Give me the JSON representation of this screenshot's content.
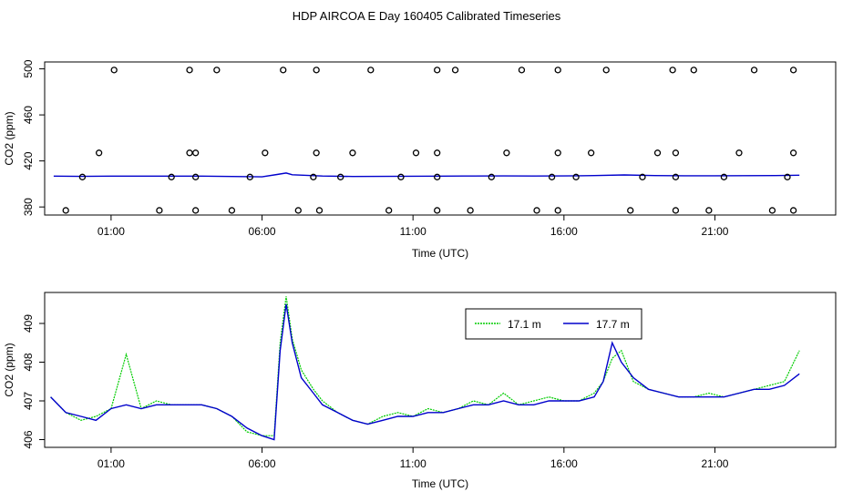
{
  "title": "HDP AIRCOA E  Day 160405  Calibrated Timeseries",
  "colors": {
    "series_17_1": "#00cc00",
    "series_17_7": "#0000cc",
    "axis": "#000000",
    "markers": "#000000"
  },
  "chart_data": [
    {
      "type": "line+scatter",
      "xlabel": "Time (UTC)",
      "ylabel": "CO2 (ppm)",
      "xlim_hours": [
        -1.2,
        25.0
      ],
      "ylim": [
        373,
        506
      ],
      "x_ticks": [
        {
          "value": 1,
          "label": "01:00"
        },
        {
          "value": 6,
          "label": "06:00"
        },
        {
          "value": 11,
          "label": "11:00"
        },
        {
          "value": 16,
          "label": "16:00"
        },
        {
          "value": 21,
          "label": "21:00"
        }
      ],
      "y_ticks": [
        {
          "value": 380,
          "label": "380"
        },
        {
          "value": 420,
          "label": "420"
        },
        {
          "value": 460,
          "label": "460"
        },
        {
          "value": 500,
          "label": "500"
        }
      ],
      "grid": false,
      "line_x": [
        -0.9,
        0,
        1,
        2,
        3,
        4,
        5,
        6,
        6.5,
        6.8,
        7,
        8,
        9,
        10,
        11,
        12,
        13,
        14,
        15,
        16,
        17,
        18,
        19,
        20,
        21,
        22,
        23,
        23.8
      ],
      "line_y": [
        406.8,
        406.6,
        406.8,
        406.8,
        406.8,
        406.8,
        406.5,
        406.2,
        408.2,
        409.5,
        408.0,
        406.9,
        406.5,
        406.6,
        406.7,
        406.8,
        406.9,
        407.0,
        406.9,
        407.0,
        407.3,
        407.8,
        407.3,
        407.1,
        407.1,
        407.2,
        407.3,
        407.6
      ],
      "calibration_points": {
        "x": [
          -0.5,
          0.05,
          0.6,
          1.1,
          2.6,
          3.0,
          3.6,
          3.6,
          3.8,
          3.8,
          3.8,
          4.5,
          5.0,
          5.6,
          6.1,
          6.7,
          7.2,
          7.7,
          7.8,
          7.8,
          7.9,
          8.6,
          9.0,
          9.6,
          10.2,
          10.6,
          11.1,
          11.8,
          11.8,
          11.8,
          11.8,
          12.4,
          12.9,
          13.6,
          14.1,
          14.6,
          15.1,
          15.6,
          15.8,
          15.8,
          15.8,
          16.4,
          16.9,
          17.4,
          18.2,
          18.6,
          19.1,
          19.6,
          19.7,
          19.7,
          19.7,
          20.3,
          20.8,
          21.3,
          21.8,
          22.3,
          22.9,
          23.4,
          23.6,
          23.6,
          23.6
        ]
      }
    },
    {
      "type": "line",
      "xlabel": "Time (UTC)",
      "ylabel": "CO2 (ppm)",
      "xlim_hours": [
        -1.2,
        25.0
      ],
      "ylim": [
        405.8,
        409.8
      ],
      "x_ticks": [
        {
          "value": 1,
          "label": "01:00"
        },
        {
          "value": 6,
          "label": "06:00"
        },
        {
          "value": 11,
          "label": "11:00"
        },
        {
          "value": 16,
          "label": "16:00"
        },
        {
          "value": 21,
          "label": "21:00"
        }
      ],
      "y_ticks": [
        {
          "value": 406,
          "label": "406"
        },
        {
          "value": 407,
          "label": "407"
        },
        {
          "value": 408,
          "label": "408"
        },
        {
          "value": 409,
          "label": "409"
        }
      ],
      "grid": false,
      "legend_position": "top-right",
      "x_hours": [
        -1.0,
        -0.5,
        0.0,
        0.5,
        1.0,
        1.5,
        2.0,
        2.5,
        3.0,
        3.5,
        4.0,
        4.5,
        5.0,
        5.5,
        6.0,
        6.4,
        6.6,
        6.8,
        7.0,
        7.3,
        7.7,
        8.0,
        8.5,
        9.0,
        9.5,
        10.0,
        10.5,
        11.0,
        11.5,
        12.0,
        12.5,
        13.0,
        13.5,
        14.0,
        14.5,
        15.0,
        15.5,
        16.0,
        16.5,
        17.0,
        17.3,
        17.6,
        17.9,
        18.3,
        18.8,
        19.3,
        19.8,
        20.3,
        20.8,
        21.3,
        21.8,
        22.3,
        22.8,
        23.3,
        23.8
      ],
      "series": [
        {
          "name": "17.1 m",
          "values": [
            407.1,
            406.7,
            406.5,
            406.6,
            406.8,
            408.2,
            406.8,
            407.0,
            406.9,
            406.9,
            406.9,
            406.8,
            406.6,
            406.2,
            406.1,
            406.1,
            408.5,
            409.7,
            408.6,
            407.8,
            407.3,
            407.0,
            406.7,
            406.5,
            406.4,
            406.6,
            406.7,
            406.6,
            406.8,
            406.7,
            406.8,
            407.0,
            406.9,
            407.2,
            406.9,
            407.0,
            407.1,
            407.0,
            407.0,
            407.2,
            407.5,
            408.1,
            408.3,
            407.5,
            407.3,
            407.2,
            407.1,
            407.1,
            407.2,
            407.1,
            407.2,
            407.3,
            407.4,
            407.5,
            408.3
          ]
        },
        {
          "name": "17.7 m",
          "values": [
            407.1,
            406.7,
            406.6,
            406.5,
            406.8,
            406.9,
            406.8,
            406.9,
            406.9,
            406.9,
            406.9,
            406.8,
            406.6,
            406.3,
            406.1,
            406.0,
            408.3,
            409.5,
            408.5,
            407.6,
            407.2,
            406.9,
            406.7,
            406.5,
            406.4,
            406.5,
            406.6,
            406.6,
            406.7,
            406.7,
            406.8,
            406.9,
            406.9,
            407.0,
            406.9,
            406.9,
            407.0,
            407.0,
            407.0,
            407.1,
            407.5,
            408.5,
            408.0,
            407.6,
            407.3,
            407.2,
            407.1,
            407.1,
            407.1,
            407.1,
            407.2,
            407.3,
            407.3,
            407.4,
            407.7
          ]
        }
      ]
    }
  ]
}
